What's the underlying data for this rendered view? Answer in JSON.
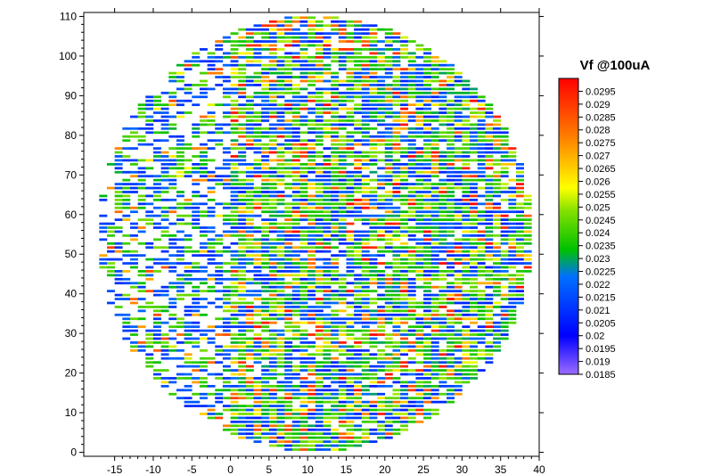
{
  "chart_data": {
    "type": "heatmap",
    "title": "",
    "xlabel": "",
    "ylabel": "",
    "xlim": [
      -19,
      40
    ],
    "ylim": [
      -1,
      111
    ],
    "x_ticks": [
      -15,
      -10,
      -5,
      0,
      5,
      10,
      15,
      20,
      25,
      30,
      35,
      40
    ],
    "y_ticks": [
      0,
      10,
      20,
      30,
      40,
      50,
      60,
      70,
      80,
      90,
      100,
      110
    ],
    "shape": "circular wafer map",
    "wafer_center": [
      11,
      55
    ],
    "wafer_radius_x": 28,
    "wafer_radius_y": 55,
    "colorbar": {
      "title": "Vf @100uA",
      "min": 0.0185,
      "max": 0.03,
      "ticks": [
        0.0185,
        0.019,
        0.0195,
        0.02,
        0.0205,
        0.021,
        0.0215,
        0.022,
        0.0225,
        0.023,
        0.0235,
        0.024,
        0.0245,
        0.025,
        0.0255,
        0.026,
        0.0265,
        0.027,
        0.0275,
        0.028,
        0.0285,
        0.029,
        0.0295
      ],
      "tick_labels": [
        "0.0185",
        "0.019",
        "0.0195",
        "0.02",
        "0.0205",
        "0.021",
        "0.0215",
        "0.022",
        "0.0225",
        "0.023",
        "0.0235",
        "0.024",
        "0.0245",
        "0.025",
        "0.0255",
        "0.026",
        "0.0265",
        "0.027",
        "0.0275",
        "0.028",
        "0.0285",
        "0.029",
        "0.0295"
      ],
      "colors": [
        "#9b6cff",
        "#0000ff",
        "#00c000",
        "#ffff00",
        "#ff8000",
        "#ff0000"
      ],
      "placement": "right"
    }
  }
}
